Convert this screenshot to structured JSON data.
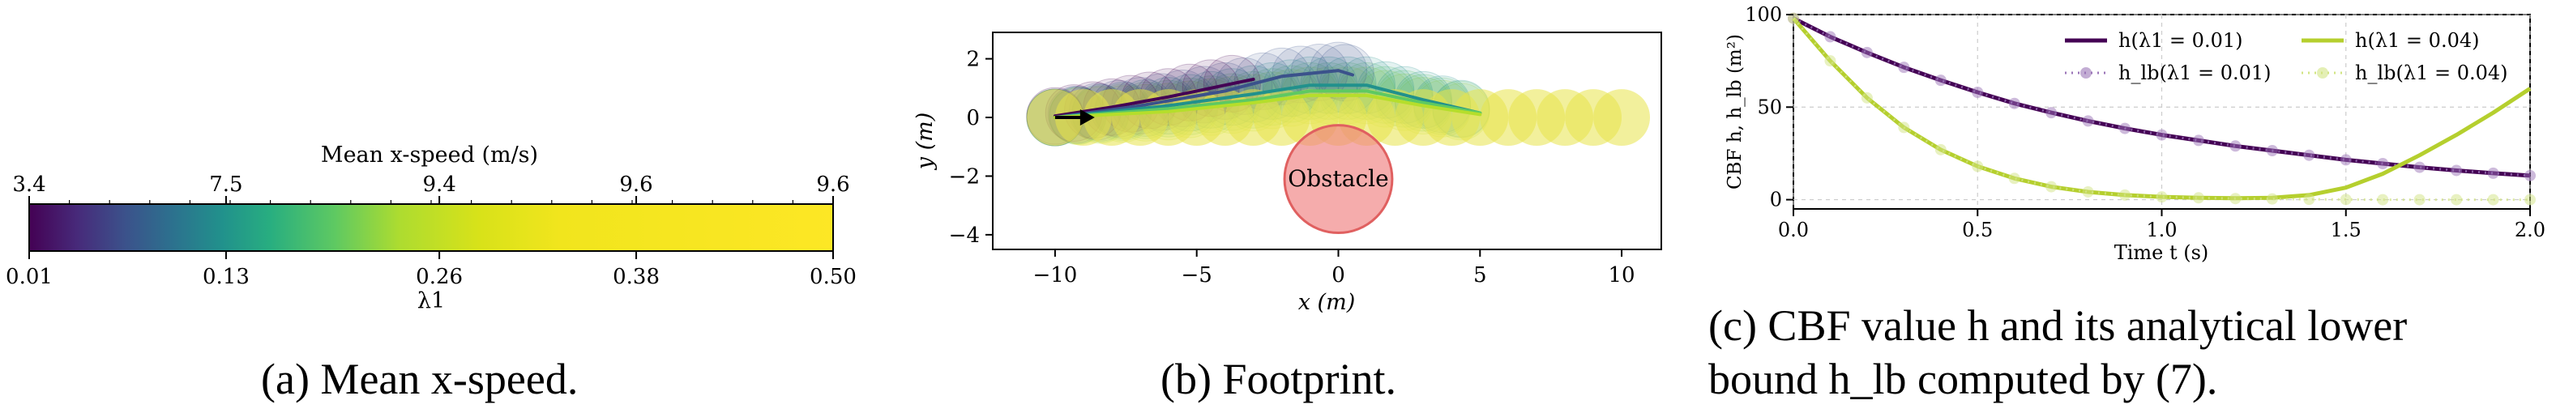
{
  "captions": {
    "a": "(a) Mean x-speed.",
    "b": "(b) Footprint.",
    "c_line1": "(c) CBF value h and its analytical lower",
    "c_line2": "bound h_lb computed by (7)."
  },
  "chart_data": [
    {
      "type": "heatmap",
      "panel": "a",
      "title": "Mean x-speed (m/s)",
      "colormap": "viridis",
      "top_ticks": [
        "3.4",
        "7.5",
        "9.4",
        "9.6",
        "9.6"
      ],
      "bottom_ticks": [
        "0.01",
        "0.13",
        "0.26",
        "0.38",
        "0.50"
      ],
      "bottom_tick_values": [
        0.01,
        0.13,
        0.26,
        0.38,
        0.5
      ],
      "xlabel": "λ1",
      "range": [
        0.01,
        0.5
      ]
    },
    {
      "type": "scatter",
      "panel": "b",
      "xlabel": "x (m)",
      "ylabel": "y (m)",
      "xlim": [
        -12.2,
        11.4
      ],
      "ylim": [
        -4.5,
        2.9
      ],
      "xticks": [
        -10,
        -5,
        0,
        5,
        10
      ],
      "yticks": [
        2,
        0,
        -2,
        -4
      ],
      "obstacle": {
        "label": "Obstacle",
        "cx": 0,
        "cy": -2.1,
        "r": 1.9,
        "color": "#f08080"
      },
      "trajectories": [
        {
          "lambda": 0.01,
          "color": "#440154",
          "points": [
            [
              -10,
              0.05
            ],
            [
              -8,
              0.35
            ],
            [
              -6,
              0.7
            ],
            [
              -4.5,
              1.0
            ],
            [
              -3,
              1.3
            ]
          ]
        },
        {
          "lambda": 0.13,
          "color": "#3b528b",
          "points": [
            [
              -10,
              0
            ],
            [
              -7,
              0.4
            ],
            [
              -4,
              0.9
            ],
            [
              -2,
              1.4
            ],
            [
              0,
              1.6
            ],
            [
              0.5,
              1.45
            ]
          ]
        },
        {
          "lambda": 0.26,
          "color": "#21918c",
          "points": [
            [
              -10,
              0
            ],
            [
              -6,
              0.4
            ],
            [
              -3,
              0.8
            ],
            [
              -1,
              1.1
            ],
            [
              1,
              1.1
            ],
            [
              3,
              0.6
            ],
            [
              5,
              0.15
            ]
          ]
        },
        {
          "lambda": 0.38,
          "color": "#5ec962",
          "points": [
            [
              -10,
              0
            ],
            [
              -6,
              0.3
            ],
            [
              -3,
              0.6
            ],
            [
              -1,
              0.9
            ],
            [
              1,
              0.9
            ],
            [
              3,
              0.5
            ],
            [
              5,
              0.15
            ]
          ]
        },
        {
          "lambda": 0.5,
          "color": "#b5de2b",
          "points": [
            [
              -10,
              0
            ],
            [
              -6,
              0.2
            ],
            [
              -3,
              0.5
            ],
            [
              -1,
              0.75
            ],
            [
              1,
              0.75
            ],
            [
              3,
              0.4
            ],
            [
              5,
              0.1
            ]
          ]
        }
      ],
      "footprint_x": [
        -10,
        -9,
        -8,
        -7,
        -6,
        -5,
        -4,
        -3,
        -2,
        -1,
        0,
        1,
        2,
        3,
        4,
        5,
        6,
        7,
        8,
        9,
        10
      ],
      "arrow": {
        "from": [
          -10,
          0
        ],
        "to": [
          -8.6,
          0
        ]
      }
    },
    {
      "type": "line",
      "panel": "c",
      "xlabel": "Time t (s)",
      "ylabel": "CBF h, h_lb (m²)",
      "xlim": [
        0,
        2.0
      ],
      "ylim": [
        -5,
        100
      ],
      "xticks": [
        "0.0",
        "0.5",
        "1.0",
        "1.5",
        "2.0"
      ],
      "yticks": [
        "0",
        "50",
        "100"
      ],
      "grid": true,
      "legend_position": "top-right",
      "series": [
        {
          "name": "h(λ1 = 0.01)",
          "color": "#440154",
          "style": "solid",
          "x": [
            0,
            0.1,
            0.2,
            0.3,
            0.4,
            0.5,
            0.6,
            0.7,
            0.8,
            0.9,
            1.0,
            1.1,
            1.2,
            1.3,
            1.4,
            1.5,
            1.6,
            1.7,
            1.8,
            1.9,
            2.0
          ],
          "y": [
            98,
            88,
            79.5,
            71.5,
            64.5,
            58,
            52,
            47,
            42.5,
            38.5,
            35,
            32,
            29,
            26.5,
            24,
            21.5,
            19.5,
            17.5,
            15.8,
            14.3,
            13
          ]
        },
        {
          "name": "h_lb(λ1 = 0.01)",
          "color": "#9b76b8",
          "style": "dotted-markers",
          "x": [
            0,
            0.1,
            0.2,
            0.3,
            0.4,
            0.5,
            0.6,
            0.7,
            0.8,
            0.9,
            1.0,
            1.1,
            1.2,
            1.3,
            1.4,
            1.5,
            1.6,
            1.7,
            1.8,
            1.9,
            2.0
          ],
          "y": [
            98,
            88,
            79.5,
            71.5,
            64.5,
            58,
            52,
            47,
            42.5,
            38.5,
            35,
            32,
            29,
            26.5,
            24,
            21.5,
            19.5,
            17.5,
            15.8,
            14.3,
            13
          ]
        },
        {
          "name": "h(λ1 = 0.04)",
          "color": "#b5cf2e",
          "style": "solid",
          "x": [
            0,
            0.1,
            0.2,
            0.3,
            0.4,
            0.5,
            0.6,
            0.7,
            0.8,
            0.9,
            1.0,
            1.1,
            1.2,
            1.3,
            1.4,
            1.5,
            1.6,
            1.7,
            1.8,
            1.9,
            2.0
          ],
          "y": [
            98,
            75,
            55,
            39,
            27,
            18,
            11.5,
            7,
            4.2,
            2.5,
            1.5,
            1,
            0.8,
            1,
            2.5,
            6.5,
            14,
            24,
            35,
            47,
            60
          ]
        },
        {
          "name": "h_lb(λ1 = 0.04)",
          "color": "#d2e484",
          "style": "dotted-markers",
          "x": [
            0,
            0.1,
            0.2,
            0.3,
            0.4,
            0.5,
            0.6,
            0.7,
            0.8,
            0.9,
            1.0,
            1.1,
            1.2,
            1.3,
            1.4,
            1.5,
            1.6,
            1.7,
            1.8,
            1.9,
            2.0
          ],
          "y": [
            98,
            75,
            55,
            39,
            27,
            18,
            11.5,
            7,
            4.2,
            2.5,
            1.5,
            1,
            0.6,
            0.4,
            0.2,
            0.1,
            0,
            0,
            0,
            0,
            0
          ]
        }
      ]
    }
  ]
}
